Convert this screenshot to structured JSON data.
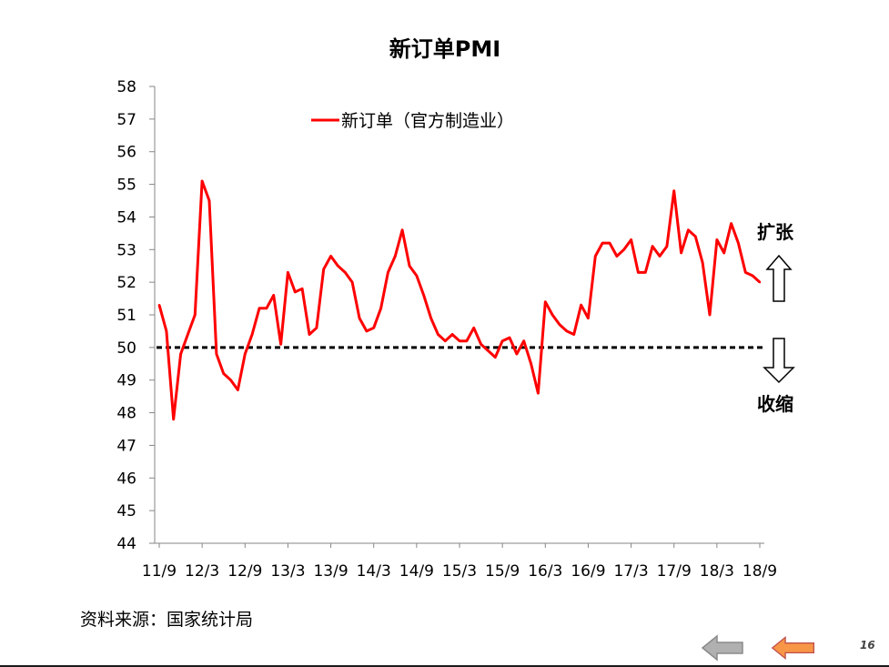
{
  "chart_data": {
    "type": "line",
    "title": "新订单PMI",
    "xlabel": "",
    "ylabel": "",
    "ylim": [
      44,
      58
    ],
    "yticks": [
      44,
      45,
      46,
      47,
      48,
      49,
      50,
      51,
      52,
      53,
      54,
      55,
      56,
      57,
      58
    ],
    "x_tick_labels": [
      "11/9",
      "12/3",
      "12/9",
      "13/3",
      "13/9",
      "14/3",
      "14/9",
      "15/3",
      "15/9",
      "16/3",
      "16/9",
      "17/3",
      "17/9",
      "18/3",
      "18/9"
    ],
    "x_start": "2011-09",
    "x_end": "2018-09",
    "grid": false,
    "legend_position": "top-center",
    "series": [
      {
        "name": "新订单（官方制造业）",
        "color": "#ff0000",
        "values": [
          51.3,
          50.5,
          47.8,
          49.8,
          50.4,
          51.0,
          55.1,
          54.5,
          49.8,
          49.2,
          49.0,
          48.7,
          49.8,
          50.4,
          51.2,
          51.2,
          51.6,
          50.1,
          52.3,
          51.7,
          51.8,
          50.4,
          50.6,
          52.4,
          52.8,
          52.5,
          52.3,
          52.0,
          50.9,
          50.5,
          50.6,
          51.2,
          52.3,
          52.8,
          53.6,
          52.5,
          52.2,
          51.6,
          50.9,
          50.4,
          50.2,
          50.4,
          50.2,
          50.2,
          50.6,
          50.1,
          49.9,
          49.7,
          50.2,
          50.3,
          49.8,
          50.2,
          49.5,
          48.6,
          51.4,
          51.0,
          50.7,
          50.5,
          50.4,
          51.3,
          50.9,
          52.8,
          53.2,
          53.2,
          52.8,
          53.0,
          53.3,
          52.3,
          52.3,
          53.1,
          52.8,
          53.1,
          54.8,
          52.9,
          53.6,
          53.4,
          52.6,
          51.0,
          53.3,
          52.9,
          53.8,
          53.2,
          52.3,
          52.2,
          52.0
        ]
      }
    ],
    "reference_line": {
      "value": 50,
      "style": "dashed",
      "color": "#000000"
    },
    "annotations": {
      "expand": "扩张",
      "contract": "收缩"
    }
  },
  "footer": {
    "source": "资料来源：国家统计局",
    "page": "16"
  }
}
